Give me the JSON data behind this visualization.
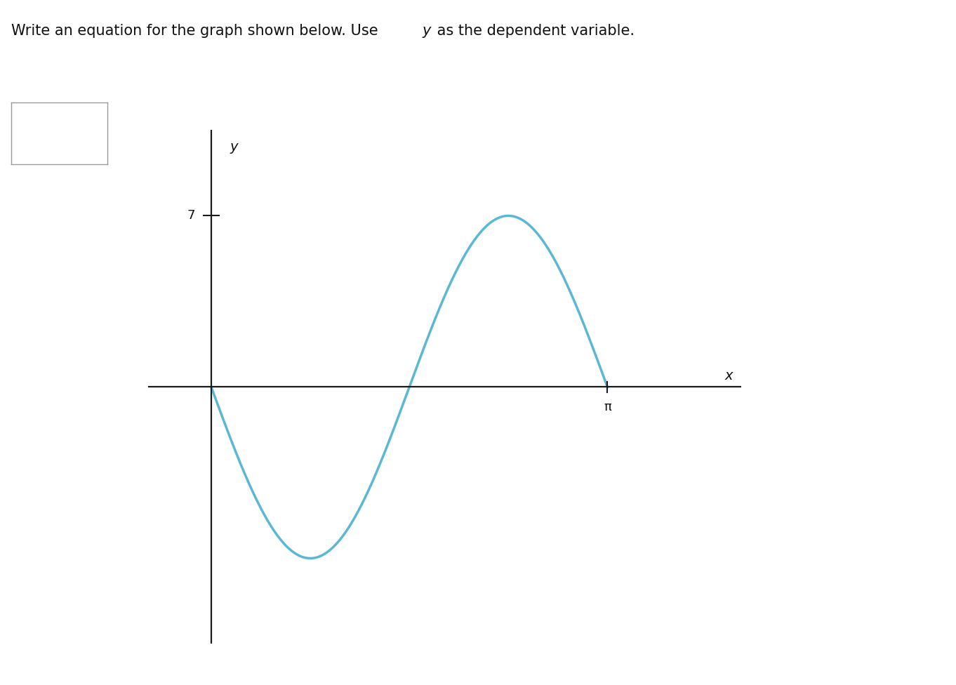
{
  "title_text": "Write an equation for the graph shown below. Use ",
  "title_italic": "y",
  "title_rest": " as the dependent variable.",
  "amplitude": 7,
  "x_tick_val": 3.14159265358979,
  "x_tick_label": "π",
  "y_tick_val": 7,
  "y_tick_label": "7",
  "y_axis_label": "y",
  "x_axis_label": "x",
  "curve_color": "#5BB8D4",
  "axis_color": "#1a1a1a",
  "background_color": "#ffffff",
  "curve_linewidth": 2.5,
  "figsize": [
    13.62,
    9.76
  ],
  "dpi": 100,
  "xlim": [
    -0.5,
    4.2
  ],
  "ylim": [
    -10.5,
    10.5
  ]
}
